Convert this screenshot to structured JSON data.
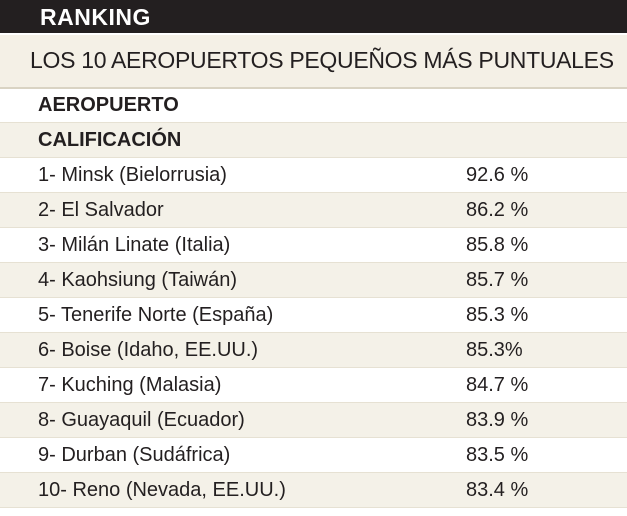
{
  "header": {
    "title": "RANKING",
    "subtitle": "LOS 10 AEROPUERTOS PEQUEÑOS MÁS PUNTUALES"
  },
  "table": {
    "columns": [
      "AEROPUERTO",
      "CALIFICACIÓN"
    ],
    "rows": [
      [
        "1- Minsk (Bielorrusia)",
        "92.6 %"
      ],
      [
        "2- El Salvador",
        "86.2 %"
      ],
      [
        "3- Milán Linate (Italia)",
        "85.8 %"
      ],
      [
        "4- Kaohsiung (Taiwán)",
        "85.7 %"
      ],
      [
        "5- Tenerife Norte (España)",
        "85.3 %"
      ],
      [
        "6- Boise (Idaho, EE.UU.)",
        "85.3%"
      ],
      [
        "7- Kuching (Malasia)",
        "84.7 %"
      ],
      [
        "8- Guayaquil (Ecuador)",
        "83.9 %"
      ],
      [
        "9- Durban (Sudáfrica)",
        "83.5 %"
      ],
      [
        "10- Reno (Nevada, EE.UU.)",
        "83.4 %"
      ]
    ]
  }
}
